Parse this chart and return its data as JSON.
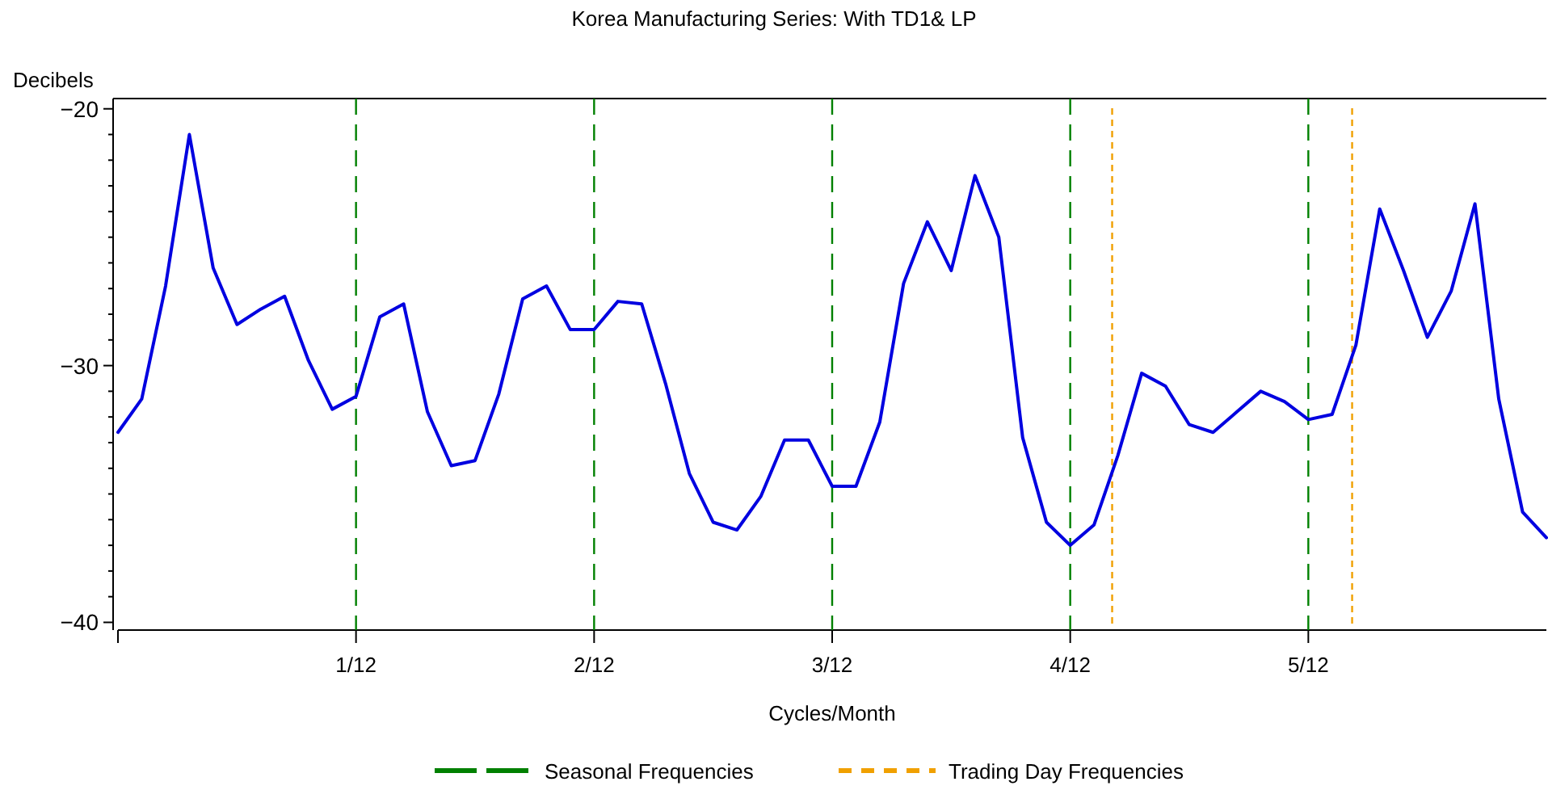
{
  "chart_data": {
    "type": "line",
    "title": "Korea Manufacturing Series: With TD1& LP",
    "xlabel": "Cycles/Month",
    "ylabel": "Decibels",
    "x": [
      0,
      0.00833,
      0.01667,
      0.025,
      0.03333,
      0.04167,
      0.05,
      0.05833,
      0.06667,
      0.075,
      0.08333,
      0.09167,
      0.1,
      0.10833,
      0.11667,
      0.125,
      0.13333,
      0.14167,
      0.15,
      0.15833,
      0.16667,
      0.175,
      0.18333,
      0.19167,
      0.2,
      0.20833,
      0.21667,
      0.225,
      0.23333,
      0.24167,
      0.25,
      0.25833,
      0.26667,
      0.275,
      0.28333,
      0.29167,
      0.3,
      0.30833,
      0.31667,
      0.325,
      0.33333,
      0.34167,
      0.35,
      0.35833,
      0.36667,
      0.375,
      0.38333,
      0.39167,
      0.4,
      0.40833,
      0.41667,
      0.425,
      0.43333,
      0.44167,
      0.45,
      0.45833,
      0.46667,
      0.475,
      0.48333,
      0.49167,
      0.5
    ],
    "series": [
      {
        "color": "#0000e0",
        "values": [
          -32.6,
          -31.3,
          -26.9,
          -21.0,
          -26.2,
          -28.4,
          -27.8,
          -27.3,
          -29.8,
          -31.7,
          -31.2,
          -28.1,
          -27.6,
          -31.8,
          -33.9,
          -33.7,
          -31.1,
          -27.4,
          -26.9,
          -28.6,
          -28.6,
          -27.5,
          -27.6,
          -30.7,
          -34.2,
          -36.1,
          -36.4,
          -35.1,
          -32.9,
          -32.9,
          -34.7,
          -34.7,
          -32.2,
          -26.8,
          -24.4,
          -26.3,
          -22.6,
          -25.0,
          -32.8,
          -36.1,
          -37.0,
          -36.2,
          -33.5,
          -30.3,
          -30.8,
          -32.3,
          -32.6,
          -31.8,
          -31.0,
          -31.4,
          -32.1,
          -31.9,
          -29.2,
          -23.9,
          -26.3,
          -28.9,
          -27.1,
          -23.7,
          -31.3,
          -35.7,
          -36.7
        ]
      }
    ],
    "xlim": [
      0,
      0.5
    ],
    "ylim": [
      -40.3,
      -19.6
    ],
    "xticks": [
      {
        "value": 0,
        "label": null
      },
      {
        "value": 0.08333,
        "label": "1/12"
      },
      {
        "value": 0.16667,
        "label": "2/12"
      },
      {
        "value": 0.25,
        "label": "3/12"
      },
      {
        "value": 0.33333,
        "label": "4/12"
      },
      {
        "value": 0.41667,
        "label": "5/12"
      }
    ],
    "yticks": [
      -40,
      {
        "value": -39,
        "label": null
      },
      {
        "value": -38,
        "label": null
      },
      {
        "value": -37,
        "label": null
      },
      {
        "value": -36,
        "label": null
      },
      {
        "value": -35,
        "label": null
      },
      {
        "value": -34,
        "label": null
      },
      {
        "value": -33,
        "label": null
      },
      {
        "value": -32,
        "label": null
      },
      {
        "value": -31,
        "label": null
      },
      -30,
      {
        "value": -29,
        "label": null
      },
      {
        "value": -28,
        "label": null
      },
      {
        "value": -27,
        "label": null
      },
      {
        "value": -26,
        "label": null
      },
      {
        "value": -25,
        "label": null
      },
      {
        "value": -24,
        "label": null
      },
      {
        "value": -23,
        "label": null
      },
      {
        "value": -22,
        "label": null
      },
      {
        "value": -21,
        "label": null
      },
      -20
    ],
    "ref_lines": [
      {
        "axis": "x",
        "value": 0.08333,
        "label": "Seasonal Frequencies",
        "color": "#008000",
        "line_style": "dashed"
      },
      {
        "axis": "x",
        "value": 0.16667,
        "color": "#008000",
        "line_style": "dashed"
      },
      {
        "axis": "x",
        "value": 0.25,
        "color": "#008000",
        "line_style": "dashed"
      },
      {
        "axis": "x",
        "value": 0.33333,
        "color": "#008000",
        "line_style": "dashed"
      },
      {
        "axis": "x",
        "value": 0.41667,
        "color": "#008000",
        "line_style": "dashed"
      },
      {
        "axis": "x",
        "value": 0.348,
        "label": "Trading Day Frequencies",
        "color": "#f0a000",
        "line_style": "dotted"
      },
      {
        "axis": "x",
        "value": 0.432,
        "color": "#f0a000",
        "line_style": "dotted"
      }
    ],
    "legend": "bottom",
    "grid": false,
    "marker": "none",
    "line_style": "solid"
  }
}
